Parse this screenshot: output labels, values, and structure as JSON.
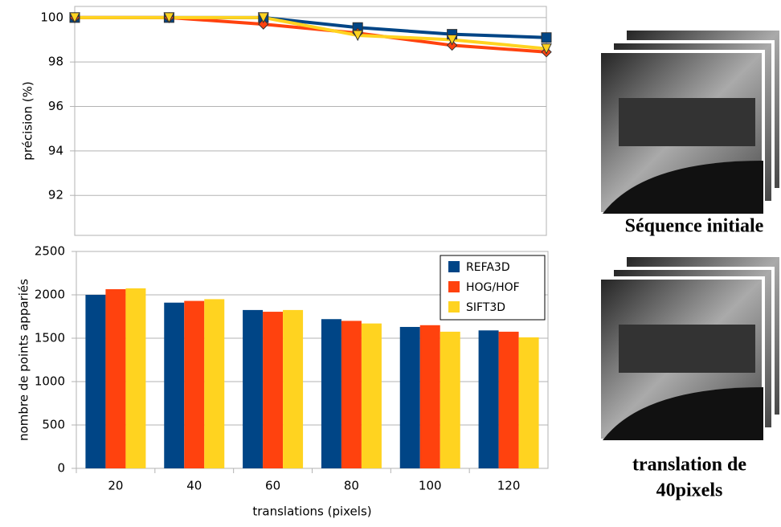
{
  "chart_data": [
    {
      "type": "line",
      "ylabel": "précision (%)",
      "x": [
        20,
        40,
        60,
        80,
        100,
        120
      ],
      "xlim": [
        20,
        120
      ],
      "ylim": [
        90.2,
        100.5
      ],
      "yticks": [
        92,
        94,
        96,
        98,
        100
      ],
      "grid": true,
      "series": [
        {
          "name": "REFA3D",
          "color": "#004586",
          "marker": "square",
          "values": [
            100,
            100,
            100,
            99.55,
            99.25,
            99.1
          ]
        },
        {
          "name": "HOG/HOF",
          "color": "#ff420e",
          "marker": "diamond",
          "values": [
            100,
            100,
            99.7,
            99.3,
            98.75,
            98.45
          ]
        },
        {
          "name": "SIFT3D",
          "color": "#ffd320",
          "marker": "triangle-down",
          "values": [
            100,
            100,
            100,
            99.2,
            99.0,
            98.6
          ]
        }
      ]
    },
    {
      "type": "bar",
      "xlabel": "translations (pixels)",
      "ylabel": "nombre de points appariés",
      "categories": [
        "20",
        "40",
        "60",
        "80",
        "100",
        "120"
      ],
      "ylim": [
        0,
        2500
      ],
      "yticks": [
        0,
        500,
        1000,
        1500,
        2000,
        2500
      ],
      "grid": true,
      "legend": "top-right",
      "series": [
        {
          "name": "REFA3D",
          "color": "#004586",
          "values": [
            2000,
            1910,
            1825,
            1720,
            1630,
            1590
          ]
        },
        {
          "name": "HOG/HOF",
          "color": "#ff420e",
          "values": [
            2065,
            1930,
            1805,
            1700,
            1650,
            1575
          ]
        },
        {
          "name": "SIFT3D",
          "color": "#ffd320",
          "values": [
            2075,
            1950,
            1825,
            1670,
            1575,
            1510
          ]
        }
      ]
    }
  ],
  "images": [
    {
      "caption": [
        "Séquence initiale"
      ]
    },
    {
      "caption": [
        "translation de",
        "40pixels"
      ]
    }
  ]
}
